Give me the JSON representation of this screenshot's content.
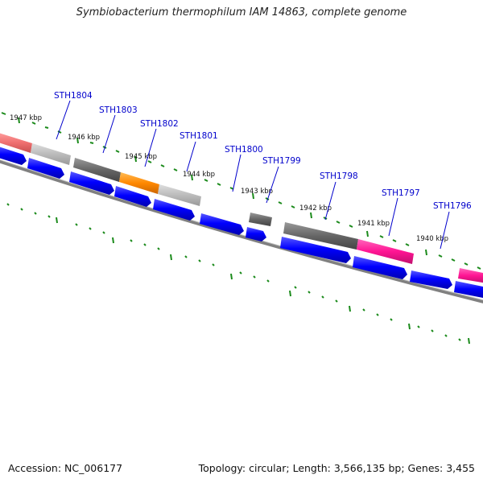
{
  "title": "Symbiobacterium thermophilum IAM 14863, complete genome",
  "accession": "Accession: NC_006177",
  "topology": "Topology: circular; Length: 3,566,135 bp; Genes: 3,455",
  "kbp_labels": [
    "1947 kbp",
    "1946 kbp",
    "1945 kbp",
    "1944 kbp",
    "1943 kbp",
    "1942 kbp",
    "1941 kbp",
    "1940 kbp"
  ],
  "locus_tags": [
    "STH1804",
    "STH1803",
    "STH1802",
    "STH1801",
    "STH1800",
    "STH1799",
    "STH1798",
    "STH1797",
    "STH1796"
  ],
  "colors": {
    "cds": "#0000ff",
    "gray": "#666666",
    "light_gray": "#bbbbbb",
    "orange": "#ff8800",
    "pink": "#ff1493",
    "salmon": "#f07070",
    "tick": "#1a8a1a",
    "label": "#0000cc",
    "backbone": "#808080"
  }
}
